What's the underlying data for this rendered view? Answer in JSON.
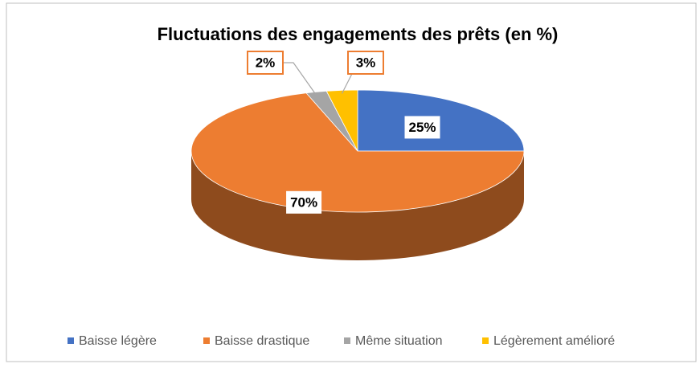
{
  "chart_data": {
    "type": "pie",
    "title": "Fluctuations des engagements des prêts (en %)",
    "categories": [
      "Baisse légère",
      "Baisse drastique",
      "Même situation",
      "Légèrement amélioré"
    ],
    "values": [
      25,
      70,
      2,
      3
    ],
    "value_labels": [
      "25%",
      "70%",
      "2%",
      "3%"
    ],
    "colors": [
      "#4472c4",
      "#ed7d31",
      "#a5a5a5",
      "#ffc000"
    ],
    "legend": "bottom"
  }
}
